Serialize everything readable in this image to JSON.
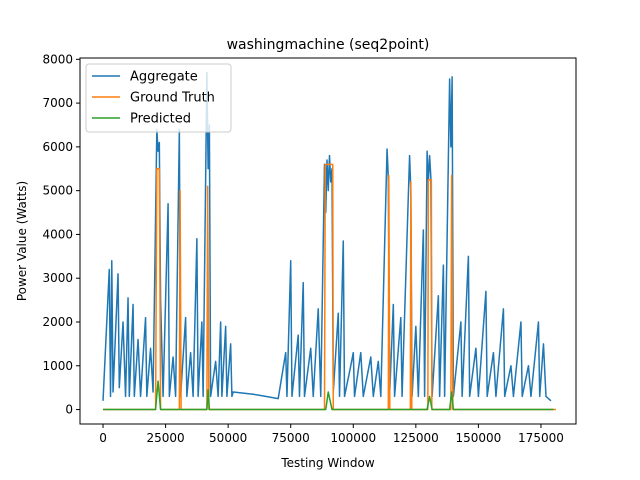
{
  "chart_data": {
    "type": "line",
    "title": "washingmachine (seq2point)",
    "x_label": "Testing Window",
    "y_label": "Power Value (Watts)",
    "xlim": [
      -9200,
      189000
    ],
    "ylim": [
      -330,
      8030
    ],
    "xticks": [
      0,
      25000,
      50000,
      75000,
      100000,
      125000,
      150000,
      175000
    ],
    "yticks": [
      0,
      1000,
      2000,
      3000,
      4000,
      5000,
      6000,
      7000,
      8000
    ],
    "grid": false,
    "legend_position": "upper-left",
    "series": [
      {
        "name": "Aggregate",
        "color": "#1f77b4",
        "x": [
          0,
          2500,
          3000,
          3500,
          4000,
          6000,
          6500,
          8000,
          9000,
          10000,
          10500,
          12000,
          12500,
          14000,
          15000,
          17000,
          17500,
          19000,
          20000,
          21500,
          22000,
          22500,
          23000,
          24000,
          26000,
          26500,
          28000,
          29000,
          30500,
          31000,
          33000,
          33500,
          35000,
          36000,
          37500,
          38000,
          39500,
          40000,
          41500,
          42000,
          42500,
          43000,
          45000,
          46000,
          47000,
          47500,
          49000,
          49500,
          51000,
          51500,
          52000,
          60000,
          65000,
          70000,
          73000,
          73500,
          75000,
          75500,
          78000,
          78500,
          80000,
          80500,
          83000,
          84000,
          86000,
          87000,
          88500,
          89000,
          89500,
          90000,
          90500,
          91000,
          91500,
          92000,
          94000,
          94500,
          96000,
          96500,
          99000,
          100000,
          100500,
          103000,
          104000,
          107000,
          108000,
          110000,
          111000,
          113500,
          114000,
          114500,
          116000,
          116500,
          119000,
          119500,
          122500,
          123000,
          123500,
          125000,
          126000,
          128000,
          128500,
          129500,
          130000,
          130500,
          131000,
          131500,
          134000,
          134500,
          136000,
          136500,
          138500,
          139000,
          139500,
          140000,
          143000,
          143500,
          146000,
          146500,
          149000,
          150000,
          153000,
          153500,
          156000,
          157000,
          160000,
          160500,
          163000,
          164000,
          167000,
          167500,
          170000,
          171000,
          174000,
          174500,
          176000,
          177000,
          179000
        ],
        "values": [
          200,
          3200,
          300,
          3400,
          400,
          3100,
          500,
          2000,
          300,
          2550,
          300,
          2400,
          300,
          1600,
          300,
          2100,
          300,
          1400,
          400,
          6400,
          5900,
          6100,
          2500,
          300,
          4700,
          300,
          1200,
          300,
          6400,
          300,
          2100,
          300,
          1300,
          300,
          3900,
          300,
          2000,
          300,
          7700,
          5500,
          6500,
          300,
          1100,
          300,
          2000,
          300,
          1900,
          300,
          1500,
          300,
          400,
          350,
          300,
          250,
          1300,
          300,
          3400,
          300,
          1700,
          300,
          2900,
          300,
          1400,
          300,
          2300,
          300,
          5600,
          4500,
          5700,
          5000,
          5800,
          5200,
          5500,
          400,
          2200,
          300,
          3850,
          300,
          1000,
          1300,
          300,
          1300,
          300,
          1200,
          300,
          1100,
          300,
          5950,
          5300,
          300,
          2400,
          300,
          2100,
          300,
          5800,
          5000,
          300,
          1900,
          300,
          4100,
          300,
          5900,
          5200,
          5800,
          5300,
          300,
          2600,
          300,
          3300,
          300,
          7550,
          6000,
          7600,
          300,
          2000,
          300,
          3500,
          300,
          1400,
          300,
          2700,
          300,
          1300,
          300,
          2300,
          300,
          1000,
          300,
          2000,
          300,
          1000,
          300,
          2000,
          300,
          1500,
          300,
          200
        ]
      },
      {
        "name": "Ground Truth",
        "color": "#ff7f0e",
        "x": [
          0,
          21000,
          21500,
          22500,
          23000,
          30500,
          30800,
          31200,
          41500,
          41800,
          42300,
          88500,
          88800,
          91800,
          92000,
          114000,
          114200,
          114600,
          122800,
          123000,
          123400,
          129800,
          130000,
          131200,
          131400,
          139000,
          139300,
          139800,
          181000
        ],
        "values": [
          0,
          0,
          5500,
          5500,
          0,
          0,
          5000,
          0,
          0,
          5100,
          0,
          0,
          5600,
          5600,
          0,
          0,
          5350,
          0,
          0,
          5200,
          0,
          0,
          5250,
          5250,
          0,
          0,
          5350,
          0,
          0
        ]
      },
      {
        "name": "Predicted",
        "color": "#2ca02c",
        "x": [
          0,
          21000,
          22000,
          23000,
          41500,
          42000,
          42500,
          89000,
          90000,
          91500,
          129500,
          130500,
          131500,
          138500,
          139300,
          140000,
          180000
        ],
        "values": [
          0,
          0,
          650,
          0,
          0,
          450,
          0,
          0,
          400,
          0,
          0,
          300,
          0,
          0,
          400,
          0,
          0
        ]
      }
    ]
  }
}
